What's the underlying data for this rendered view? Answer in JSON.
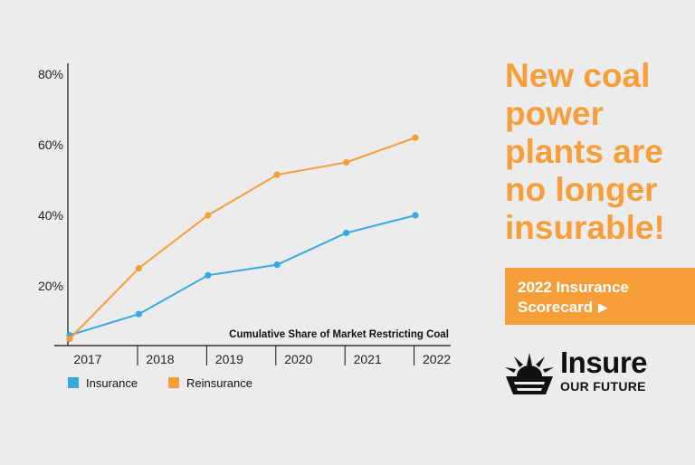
{
  "chart_data": {
    "type": "line",
    "categories": [
      "2017",
      "2018",
      "2019",
      "2020",
      "2021",
      "2022"
    ],
    "series": [
      {
        "name": "Insurance",
        "color": "#36a9e1",
        "values": [
          6,
          12,
          23,
          26,
          35,
          40
        ]
      },
      {
        "name": "Reinsurance",
        "color": "#f59e3a",
        "values": [
          5,
          25,
          40,
          51.5,
          55,
          62
        ]
      }
    ],
    "y_ticks": [
      "20%",
      "40%",
      "60%",
      "80%"
    ],
    "ylim": [
      0,
      80
    ],
    "annotation": "Cumulative Share of Market Restricting Coal",
    "legend_position": "bottom-left"
  },
  "headline": [
    "New coal",
    "power",
    "plants are",
    "no longer",
    "insurable!"
  ],
  "cta": {
    "label_line1": "2022 Insurance",
    "label_line2": "Scorecard",
    "arrow_icon": "play-triangle-icon"
  },
  "logo": {
    "word1": "Insure",
    "word2": "OUR FUTURE",
    "icon": "sunrise-basket-icon"
  }
}
